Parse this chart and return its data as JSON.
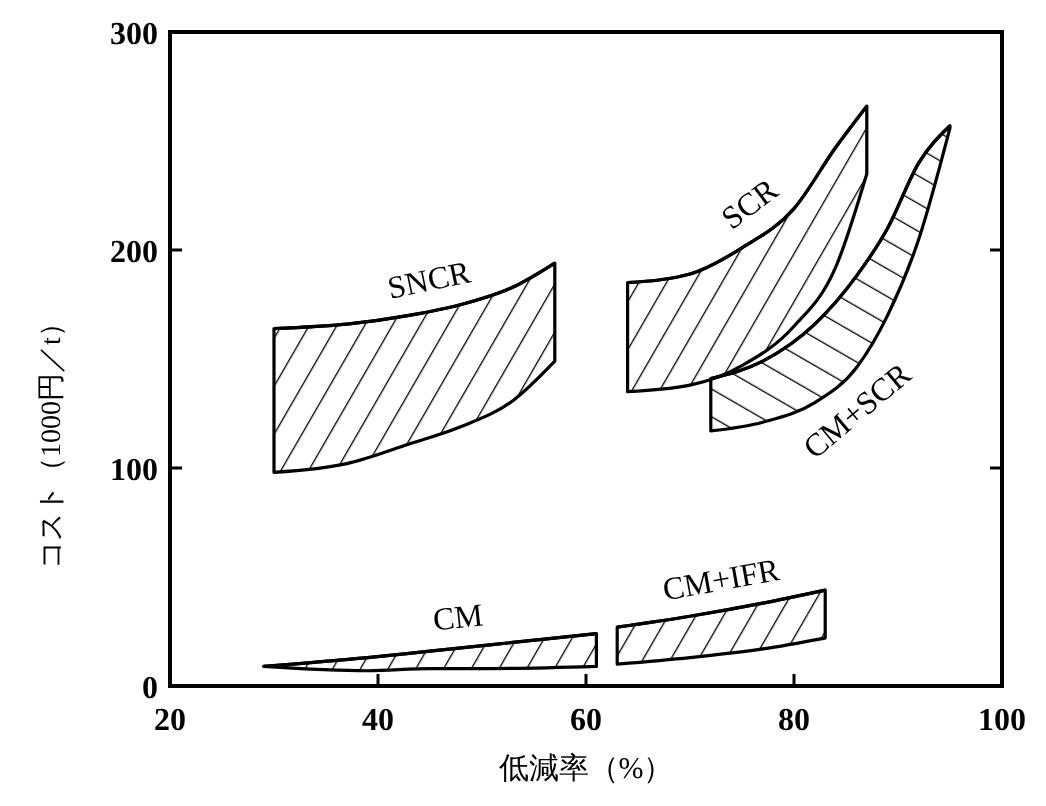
{
  "chart_data": {
    "type": "line",
    "xlabel": "低減率（%）",
    "ylabel": "コスト（1000円／t）",
    "xlim": [
      20,
      100
    ],
    "xticks": [
      20,
      40,
      60,
      80,
      100
    ],
    "ylim": [
      0,
      300
    ],
    "yticks": [
      0,
      100,
      200,
      300
    ],
    "marker": "none",
    "series": [
      {
        "name": "SNCR",
        "color": "#000000",
        "x": [
          30,
          37,
          43,
          48,
          53,
          57
        ],
        "values": [
          164,
          166,
          170,
          175,
          183,
          194
        ],
        "upper": [
          164,
          166,
          170,
          175,
          183,
          194
        ],
        "lower": [
          98,
          102,
          111,
          119,
          131,
          149
        ]
      },
      {
        "name": "SCR",
        "color": "#000000",
        "x": [
          64,
          70,
          75,
          80,
          84,
          87
        ],
        "values": [
          185,
          189,
          201,
          219,
          247,
          266
        ],
        "upper": [
          185,
          189,
          201,
          219,
          247,
          266
        ],
        "lower": [
          135,
          138,
          147,
          165,
          192,
          235
        ]
      },
      {
        "name": "CM+SCR",
        "color": "#000000",
        "x": [
          72,
          77,
          82,
          86,
          89,
          92,
          95
        ],
        "values": [
          141,
          149,
          166,
          188,
          210,
          240,
          257
        ],
        "upper": [
          141,
          149,
          166,
          188,
          210,
          240,
          257
        ],
        "lower": [
          117,
          121,
          130,
          146,
          170,
          205,
          256
        ]
      },
      {
        "name": "CM",
        "color": "#000000",
        "x": [
          29,
          39,
          45,
          51,
          61
        ],
        "values": [
          9,
          13,
          16,
          19,
          24
        ],
        "upper": [
          9,
          13,
          16,
          19,
          24
        ],
        "lower": [
          9,
          7,
          8,
          8,
          9
        ]
      },
      {
        "name": "CM+IFR",
        "color": "#000000",
        "x": [
          63,
          70,
          77,
          83
        ],
        "values": [
          27,
          32,
          38,
          44
        ],
        "upper": [
          27,
          32,
          38,
          44
        ],
        "lower": [
          10,
          13,
          17,
          22
        ]
      }
    ]
  }
}
